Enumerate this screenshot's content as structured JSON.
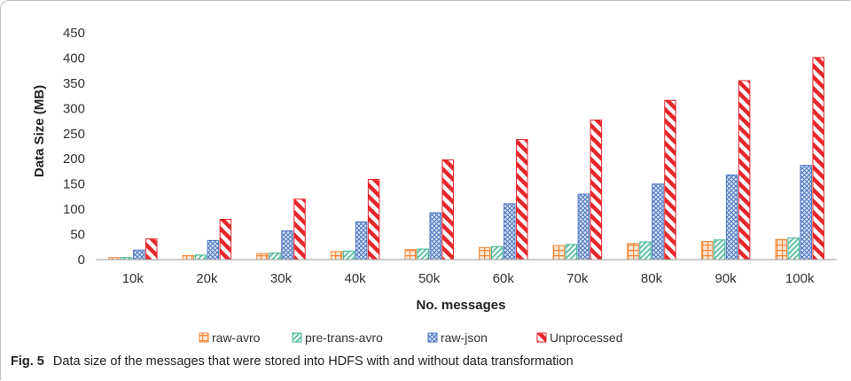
{
  "caption": {
    "label": "Fig. 5",
    "text": "Data size of the messages that were stored into HDFS with and without data transformation"
  },
  "chart_data": {
    "type": "bar",
    "title": "",
    "xlabel": "No. messages",
    "ylabel": "Data Size (MB)",
    "ylim": [
      0,
      450
    ],
    "yticks": [
      "0",
      "50",
      "100",
      "150",
      "200",
      "250",
      "300",
      "350",
      "400",
      "450"
    ],
    "grid": false,
    "legend_position": "bottom",
    "categories": [
      "10k",
      "20k",
      "30k",
      "40k",
      "50k",
      "60k",
      "70k",
      "80k",
      "90k",
      "100k"
    ],
    "series": [
      {
        "name": "raw-avro",
        "values": [
          4,
          8,
          12,
          16,
          20,
          24,
          28,
          32,
          36,
          40
        ],
        "color": "#f28a3c",
        "pattern": "grid"
      },
      {
        "name": "pre-trans-avro",
        "values": [
          4,
          9,
          13,
          17,
          21,
          26,
          30,
          35,
          39,
          43
        ],
        "color": "#43b596",
        "pattern": "diagonal"
      },
      {
        "name": "raw-json",
        "values": [
          19,
          38,
          57,
          75,
          93,
          111,
          130,
          150,
          168,
          187
        ],
        "color": "#4f79c4",
        "pattern": "crosshatch"
      },
      {
        "name": "Unprocessed",
        "values": [
          41,
          80,
          120,
          159,
          198,
          238,
          277,
          316,
          355,
          401
        ],
        "color": "#e8262c",
        "pattern": "stripes"
      }
    ]
  }
}
